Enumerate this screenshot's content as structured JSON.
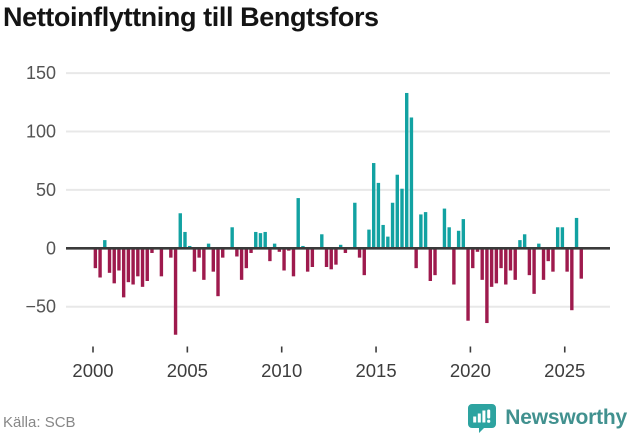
{
  "title": "Nettoinflyttning till Bengtsfors",
  "source": "Källa: SCB",
  "logo": {
    "brand": "Newsworthy",
    "icon": "speech-bubble-with-bar-chart-and-exclamation"
  },
  "colors": {
    "positive": "#12a2a2",
    "negative": "#9e1a4d",
    "zero_line": "#3a3a3a",
    "gridline": "#e8e8e8",
    "y_label_text": "#545454",
    "x_label_text": "#3d3d3d",
    "title_text": "#141414",
    "source_text": "#878787",
    "logo_teal": "#2da3a0",
    "logo_text": "#41918f"
  },
  "chart_data": {
    "type": "bar",
    "title": "Nettoinflyttning till Bengtsfors",
    "x_unit": "quarter",
    "grid": "horizontal",
    "legend": "none",
    "y_ticks": [
      150,
      100,
      50,
      0,
      -50
    ],
    "y_tick_labels": [
      "150",
      "100",
      "50",
      "0",
      "−50"
    ],
    "x_tick_years": [
      2000,
      2005,
      2010,
      2015,
      2020,
      2025
    ],
    "x_tick_labels": [
      "2000",
      "2005",
      "2010",
      "2015",
      "2020",
      "2025"
    ],
    "ylim": [
      -80,
      160
    ],
    "bar_sign_colors": {
      "positive": "#12a2a2",
      "negative": "#9e1a4d"
    },
    "values_by_year": {
      "2000": [
        -17,
        -25,
        7,
        -21
      ],
      "2001": [
        -30,
        -19,
        -42,
        -29
      ],
      "2002": [
        -31,
        -24,
        -33,
        -28
      ],
      "2003": [
        -4,
        0,
        -24,
        0
      ],
      "2004": [
        -8,
        -74,
        30,
        14
      ],
      "2005": [
        2,
        -20,
        -8,
        -27
      ],
      "2006": [
        4,
        -20,
        -41,
        -8
      ],
      "2007": [
        0,
        18,
        -7,
        -27
      ],
      "2008": [
        -17,
        -4,
        14,
        13
      ],
      "2009": [
        14,
        -11,
        4,
        -3
      ],
      "2010": [
        -19,
        -2,
        -24,
        43
      ],
      "2011": [
        2,
        -20,
        -16,
        0
      ],
      "2012": [
        12,
        -16,
        -18,
        -14
      ],
      "2013": [
        3,
        -4,
        0,
        39
      ],
      "2014": [
        -8,
        -23,
        16,
        73
      ],
      "2015": [
        56,
        20,
        10,
        39
      ],
      "2016": [
        63,
        51,
        133,
        112
      ],
      "2017": [
        -17,
        29,
        31,
        -28
      ],
      "2018": [
        -23,
        0,
        34,
        18
      ],
      "2019": [
        -31,
        15,
        25,
        -62
      ],
      "2020": [
        -17,
        -3,
        -27,
        -64
      ],
      "2021": [
        -33,
        -30,
        -17,
        -31
      ],
      "2022": [
        -19,
        -27,
        7,
        12
      ],
      "2023": [
        -23,
        -39,
        4,
        -27
      ],
      "2024": [
        -11,
        -20,
        18,
        18
      ],
      "2025": [
        -20,
        -53,
        26,
        -26
      ]
    }
  }
}
